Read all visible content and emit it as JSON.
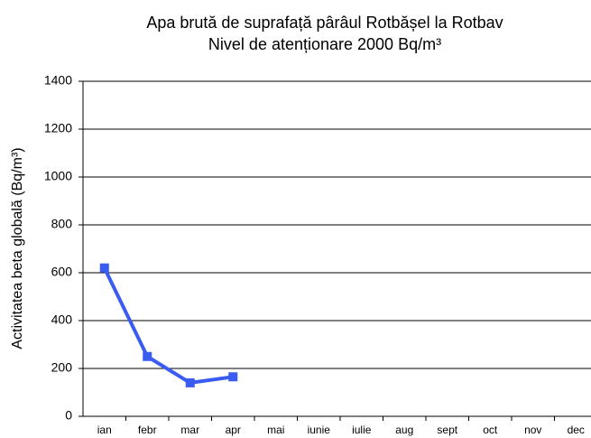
{
  "chart_data": {
    "type": "line",
    "title": "Apa brută de suprafață pârâul Rotbășel la Rotbav",
    "subtitle": "Nivel de atenționare 2000 Bq/m³",
    "y_label": "Activitatea beta globală (Bq/m³)",
    "categories": [
      "ian",
      "febr",
      "mar",
      "apr",
      "mai",
      "iunie",
      "iulie",
      "aug",
      "sept",
      "oct",
      "nov",
      "dec"
    ],
    "series": [
      {
        "name": "Activitatea beta globală",
        "color": "#3a5cf0",
        "values": [
          620,
          250,
          140,
          165,
          null,
          null,
          null,
          null,
          null,
          null,
          null,
          null
        ]
      }
    ],
    "ylim": [
      0,
      1400
    ],
    "yticks": [
      0,
      200,
      400,
      600,
      800,
      1000,
      1200,
      1400
    ],
    "grid": true
  }
}
